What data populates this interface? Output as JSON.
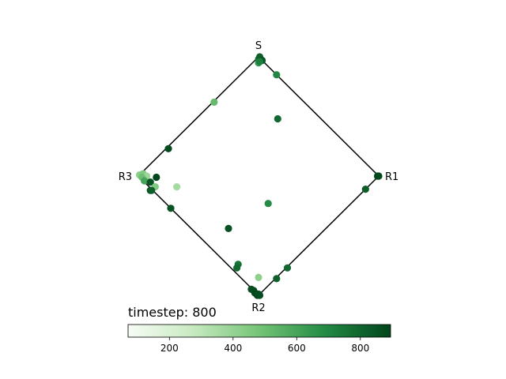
{
  "chart_data": {
    "type": "scatter",
    "title": "",
    "annotation": "timestep: 800",
    "vertices": {
      "top": "S",
      "right": "R1",
      "bottom": "R2",
      "left": "R3"
    },
    "colormap": {
      "name": "Greens",
      "stops": [
        "#f7fcf5",
        "#c7e9c0",
        "#74c476",
        "#238b45",
        "#00441b"
      ],
      "range": [
        70,
        895
      ]
    },
    "colorbar": {
      "ticks": [
        200,
        400,
        600,
        800
      ]
    },
    "points": [
      {
        "u": 0.0,
        "v": 0.98,
        "t": 760
      },
      {
        "u": 0.01,
        "v": 1.0,
        "t": 820
      },
      {
        "u": 0.03,
        "v": 0.97,
        "t": 845
      },
      {
        "u": 0.0,
        "v": 0.95,
        "t": 650
      },
      {
        "u": 0.01,
        "v": 0.96,
        "t": 720
      },
      {
        "u": 0.15,
        "v": 0.85,
        "t": 700
      },
      {
        "u": -0.37,
        "v": 0.62,
        "t": 520
      },
      {
        "u": 0.16,
        "v": 0.48,
        "t": 790
      },
      {
        "u": -0.75,
        "v": 0.23,
        "t": 880
      },
      {
        "u": -0.99,
        "v": 0.01,
        "t": 420
      },
      {
        "u": -0.96,
        "v": 0.02,
        "t": 450
      },
      {
        "u": -0.93,
        "v": 0.0,
        "t": 380
      },
      {
        "u": -0.97,
        "v": -0.01,
        "t": 500
      },
      {
        "u": -0.95,
        "v": -0.04,
        "t": 600
      },
      {
        "u": -0.9,
        "v": -0.05,
        "t": 850
      },
      {
        "u": -0.86,
        "v": -0.09,
        "t": 450
      },
      {
        "u": -0.85,
        "v": -0.01,
        "t": 890
      },
      {
        "u": -0.68,
        "v": -0.09,
        "t": 360
      },
      {
        "u": -0.9,
        "v": -0.12,
        "t": 880
      },
      {
        "u": -0.89,
        "v": -0.12,
        "t": 820
      },
      {
        "u": -0.73,
        "v": -0.27,
        "t": 850
      },
      {
        "u": 0.08,
        "v": -0.23,
        "t": 690
      },
      {
        "u": -0.25,
        "v": -0.44,
        "t": 860
      },
      {
        "u": -0.17,
        "v": -0.74,
        "t": 760
      },
      {
        "u": -0.18,
        "v": -0.77,
        "t": 790
      },
      {
        "u": 0.0,
        "v": -0.85,
        "t": 420
      },
      {
        "u": 0.15,
        "v": -0.86,
        "t": 810
      },
      {
        "u": 0.24,
        "v": -0.77,
        "t": 790
      },
      {
        "u": -0.06,
        "v": -0.95,
        "t": 860
      },
      {
        "u": -0.04,
        "v": -0.96,
        "t": 870
      },
      {
        "u": -0.03,
        "v": -0.98,
        "t": 880
      },
      {
        "u": -0.01,
        "v": -1.0,
        "t": 890
      },
      {
        "u": 0.0,
        "v": -0.99,
        "t": 860
      },
      {
        "u": 0.01,
        "v": -1.0,
        "t": 870
      },
      {
        "u": 0.89,
        "v": -0.11,
        "t": 820
      },
      {
        "u": 1.0,
        "v": 0.0,
        "t": 895
      },
      {
        "u": 0.99,
        "v": 0.0,
        "t": 880
      }
    ]
  }
}
